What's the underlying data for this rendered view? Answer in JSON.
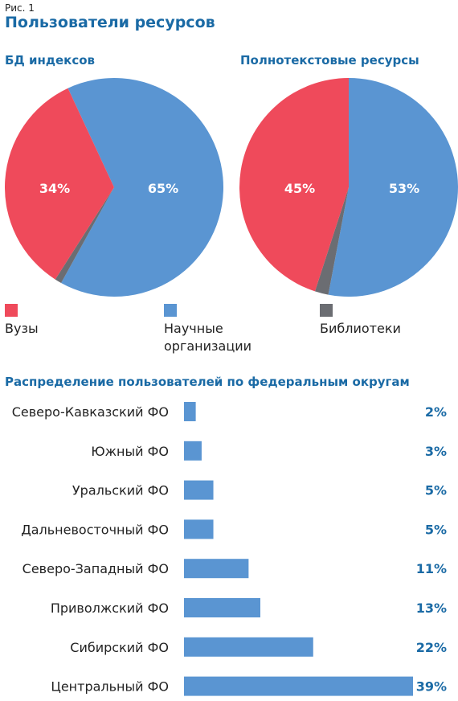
{
  "figure_label": "Рис. 1",
  "title": "Пользователи ресурсов",
  "colors": {
    "red": "#ef4a5b",
    "blue": "#5a95d2",
    "gray": "#6b6d72",
    "title_blue": "#1a6aa5"
  },
  "legend": [
    {
      "label": "Вузы",
      "color": "#ef4a5b"
    },
    {
      "label": "Научные организации",
      "color": "#5a95d2"
    },
    {
      "label": "Библиотеки",
      "color": "#6b6d72"
    }
  ],
  "chart_data": [
    {
      "type": "pie",
      "title": "БД индексов",
      "labels": [
        "Вузы",
        "Научные организации",
        "Библиотеки"
      ],
      "values": [
        34,
        65,
        1
      ],
      "value_labels": [
        "34%",
        "65%",
        ""
      ],
      "colors": [
        "#ef4a5b",
        "#5a95d2",
        "#6b6d72"
      ]
    },
    {
      "type": "pie",
      "title": "Полнотекстовые ресурсы",
      "labels": [
        "Вузы",
        "Научные организации",
        "Библиотеки"
      ],
      "values": [
        45,
        53,
        2
      ],
      "value_labels": [
        "45%",
        "53%",
        ""
      ],
      "colors": [
        "#ef4a5b",
        "#5a95d2",
        "#6b6d72"
      ]
    },
    {
      "type": "bar",
      "orientation": "horizontal",
      "title": "Распределение пользователей по федеральным округам",
      "categories": [
        "Северо-Кавказский ФО",
        "Южный ФО",
        "Уральский ФО",
        "Дальневосточный ФО",
        "Северо-Западный ФО",
        "Приволжский ФО",
        "Сибирский ФО",
        "Центральный ФО"
      ],
      "values": [
        2,
        3,
        5,
        5,
        11,
        13,
        22,
        39
      ],
      "value_labels": [
        "2%",
        "3%",
        "5%",
        "5%",
        "11%",
        "13%",
        "22%",
        "39%"
      ],
      "color": "#5a95d2",
      "xlim": [
        0,
        39
      ]
    }
  ]
}
